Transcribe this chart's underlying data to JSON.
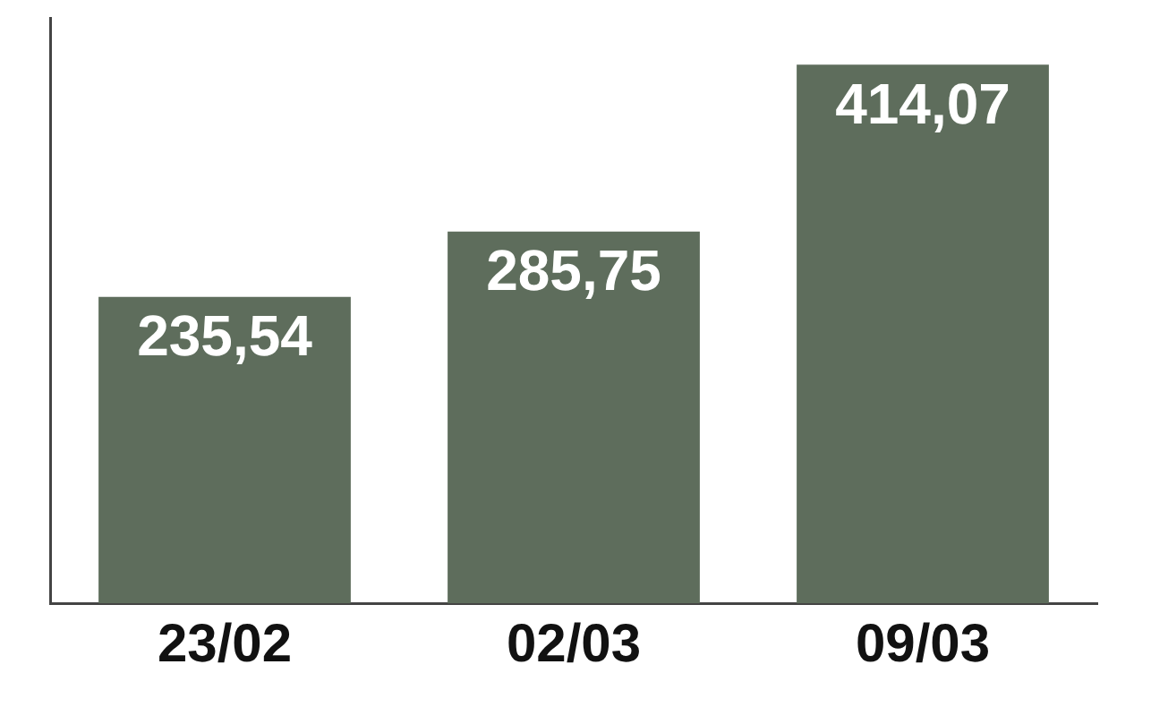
{
  "chart_data": {
    "type": "bar",
    "categories": [
      "23/02",
      "02/03",
      "09/03"
    ],
    "values": [
      235.54,
      285.75,
      414.07
    ],
    "value_labels": [
      "235,54",
      "285,75",
      "414,07"
    ],
    "color": "#5e6d5c",
    "grid": false,
    "legend": false
  }
}
